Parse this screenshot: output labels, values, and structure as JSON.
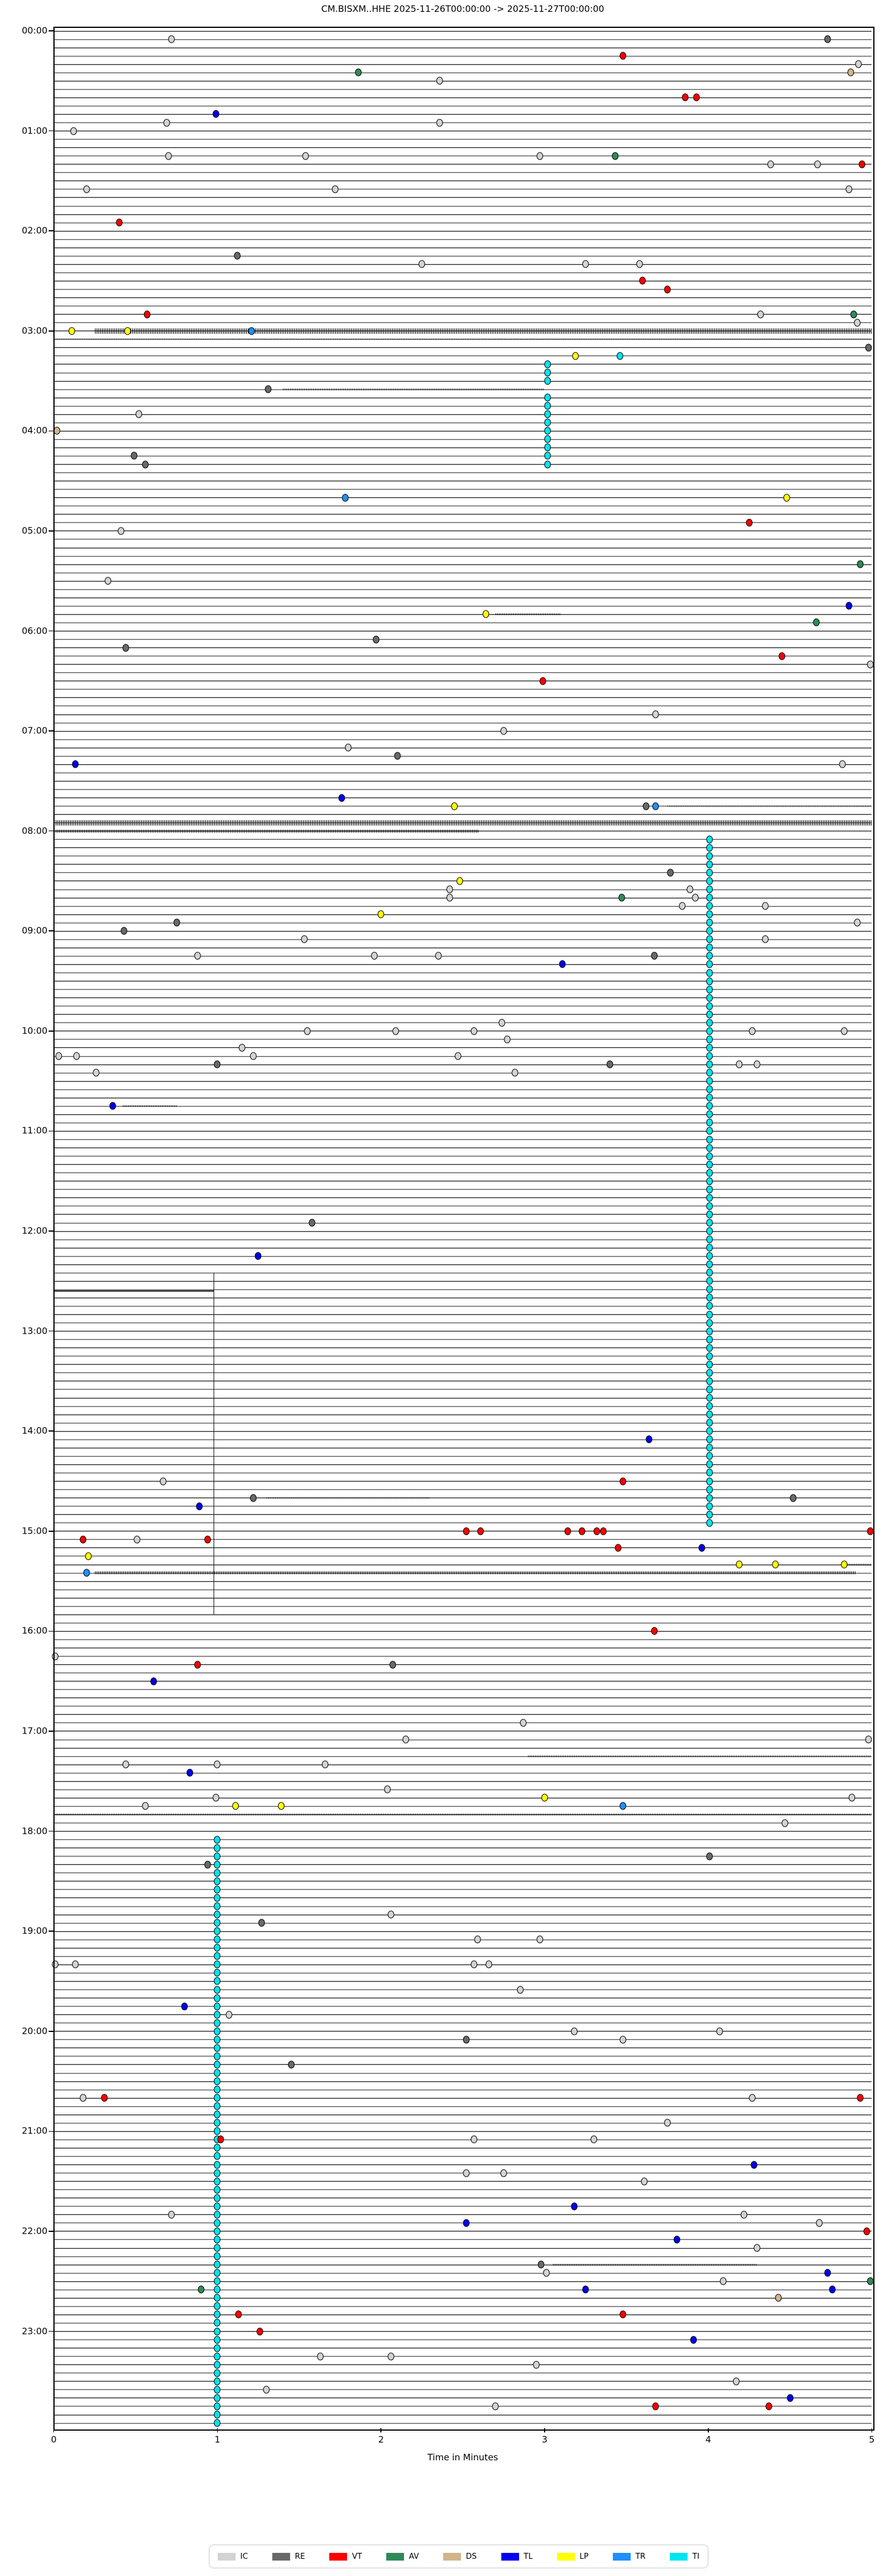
{
  "title": "CM.BISXM..HHE  2025-11-26T00:00:00 -> 2025-11-27T00:00:00",
  "xlabel": "Time in Minutes",
  "x_ticks": [
    "0",
    "1",
    "2",
    "3",
    "4",
    "5"
  ],
  "y_ticks": [
    "00:00",
    "01:00",
    "02:00",
    "03:00",
    "04:00",
    "05:00",
    "06:00",
    "07:00",
    "08:00",
    "09:00",
    "10:00",
    "11:00",
    "12:00",
    "13:00",
    "14:00",
    "15:00",
    "16:00",
    "17:00",
    "18:00",
    "19:00",
    "20:00",
    "21:00",
    "22:00",
    "23:00"
  ],
  "legend": [
    {
      "label": "IC",
      "color": "#d3d3d3"
    },
    {
      "label": "RE",
      "color": "#696969"
    },
    {
      "label": "VT",
      "color": "#ff0000"
    },
    {
      "label": "AV",
      "color": "#2e8b57"
    },
    {
      "label": "DS",
      "color": "#d2b48c"
    },
    {
      "label": "TL",
      "color": "#0000ee"
    },
    {
      "label": "LP",
      "color": "#ffff00"
    },
    {
      "label": "TR",
      "color": "#1e90ff"
    },
    {
      "label": "TI",
      "color": "#00e5f2"
    }
  ],
  "chart_data": {
    "type": "scatter",
    "title": "CM.BISXM..HHE  2025-11-26T00:00:00 -> 2025-11-27T00:00:00",
    "xlabel": "Time in Minutes",
    "x_range": [
      0,
      5
    ],
    "rows": 288,
    "minutes_per_row": 5,
    "time_start": "2025-11-26T00:00:00",
    "time_end": "2025-11-27T00:00:00",
    "grid": "off",
    "legend_position": "bottom-center",
    "marker_classes": [
      "IC",
      "RE",
      "VT",
      "AV",
      "DS",
      "TL",
      "LP",
      "TR",
      "TI"
    ],
    "markers": [
      {
        "t": "00:05",
        "m": 0.72,
        "c": "IC"
      },
      {
        "t": "00:05",
        "m": 4.73,
        "c": "RE"
      },
      {
        "t": "00:15",
        "m": 3.48,
        "c": "VT"
      },
      {
        "t": "00:20",
        "m": 4.92,
        "c": "IC"
      },
      {
        "t": "00:25",
        "m": 1.86,
        "c": "AV"
      },
      {
        "t": "00:25",
        "m": 4.87,
        "c": "DS"
      },
      {
        "t": "00:30",
        "m": 2.36,
        "c": "IC"
      },
      {
        "t": "00:40",
        "m": 3.86,
        "c": "VT"
      },
      {
        "t": "00:40",
        "m": 3.93,
        "c": "VT"
      },
      {
        "t": "00:50",
        "m": 0.99,
        "c": "TL"
      },
      {
        "t": "00:55",
        "m": 0.69,
        "c": "IC"
      },
      {
        "t": "00:55",
        "m": 2.36,
        "c": "IC"
      },
      {
        "t": "01:00",
        "m": 0.12,
        "c": "IC"
      },
      {
        "t": "01:15",
        "m": 0.7,
        "c": "IC"
      },
      {
        "t": "01:15",
        "m": 1.54,
        "c": "IC"
      },
      {
        "t": "01:15",
        "m": 2.97,
        "c": "IC"
      },
      {
        "t": "01:15",
        "m": 3.43,
        "c": "AV"
      },
      {
        "t": "01:20",
        "m": 4.38,
        "c": "IC"
      },
      {
        "t": "01:20",
        "m": 4.67,
        "c": "IC"
      },
      {
        "t": "01:20",
        "m": 4.94,
        "c": "VT"
      },
      {
        "t": "01:35",
        "m": 0.2,
        "c": "IC"
      },
      {
        "t": "01:35",
        "m": 1.72,
        "c": "IC"
      },
      {
        "t": "01:35",
        "m": 4.86,
        "c": "IC"
      },
      {
        "t": "01:55",
        "m": 0.4,
        "c": "VT"
      },
      {
        "t": "02:15",
        "m": 1.12,
        "c": "RE"
      },
      {
        "t": "02:20",
        "m": 2.25,
        "c": "IC"
      },
      {
        "t": "02:20",
        "m": 3.25,
        "c": "IC"
      },
      {
        "t": "02:20",
        "m": 3.58,
        "c": "IC"
      },
      {
        "t": "02:30",
        "m": 3.6,
        "c": "VT"
      },
      {
        "t": "02:35",
        "m": 3.75,
        "c": "VT"
      },
      {
        "t": "02:50",
        "m": 0.57,
        "c": "VT"
      },
      {
        "t": "02:50",
        "m": 4.32,
        "c": "IC"
      },
      {
        "t": "02:50",
        "m": 4.89,
        "c": "AV"
      },
      {
        "t": "02:55",
        "m": 4.91,
        "c": "IC"
      },
      {
        "t": "03:00",
        "m": 0.11,
        "c": "LP"
      },
      {
        "t": "03:00",
        "m": 0.45,
        "c": "LP"
      },
      {
        "t": "03:00",
        "m": 1.21,
        "c": "TR"
      },
      {
        "t": "03:10",
        "m": 4.98,
        "c": "RE"
      },
      {
        "t": "03:15",
        "m": 3.19,
        "c": "LP"
      },
      {
        "t": "03:15",
        "m": 3.46,
        "c": "TI"
      },
      {
        "t": "03:35",
        "m": 1.31,
        "c": "RE"
      },
      {
        "t": "03:50",
        "m": 0.52,
        "c": "IC"
      },
      {
        "t": "04:00",
        "m": 0.02,
        "c": "DS"
      },
      {
        "t": "04:15",
        "m": 0.49,
        "c": "RE"
      },
      {
        "t": "04:20",
        "m": 0.56,
        "c": "RE"
      },
      {
        "t": "04:40",
        "m": 1.78,
        "c": "TR"
      },
      {
        "t": "04:40",
        "m": 4.48,
        "c": "LP"
      },
      {
        "t": "04:55",
        "m": 4.25,
        "c": "VT"
      },
      {
        "t": "05:00",
        "m": 0.41,
        "c": "IC"
      },
      {
        "t": "05:20",
        "m": 4.93,
        "c": "AV"
      },
      {
        "t": "05:30",
        "m": 0.33,
        "c": "IC"
      },
      {
        "t": "05:45",
        "m": 4.86,
        "c": "TL"
      },
      {
        "t": "05:50",
        "m": 2.64,
        "c": "LP"
      },
      {
        "t": "05:55",
        "m": 4.66,
        "c": "AV"
      },
      {
        "t": "06:05",
        "m": 1.97,
        "c": "RE"
      },
      {
        "t": "06:10",
        "m": 0.44,
        "c": "RE"
      },
      {
        "t": "06:15",
        "m": 4.45,
        "c": "VT"
      },
      {
        "t": "06:20",
        "m": 4.99,
        "c": "IC"
      },
      {
        "t": "06:30",
        "m": 2.99,
        "c": "VT"
      },
      {
        "t": "06:50",
        "m": 3.68,
        "c": "IC"
      },
      {
        "t": "07:00",
        "m": 2.75,
        "c": "IC"
      },
      {
        "t": "07:10",
        "m": 1.8,
        "c": "IC"
      },
      {
        "t": "07:15",
        "m": 2.1,
        "c": "RE"
      },
      {
        "t": "07:20",
        "m": 0.13,
        "c": "TL"
      },
      {
        "t": "07:20",
        "m": 4.82,
        "c": "IC"
      },
      {
        "t": "07:40",
        "m": 1.76,
        "c": "TL"
      },
      {
        "t": "07:45",
        "m": 2.45,
        "c": "LP"
      },
      {
        "t": "07:45",
        "m": 3.62,
        "c": "RE"
      },
      {
        "t": "07:45",
        "m": 3.68,
        "c": "TR"
      },
      {
        "t": "08:25",
        "m": 3.77,
        "c": "RE"
      },
      {
        "t": "08:30",
        "m": 2.48,
        "c": "LP"
      },
      {
        "t": "08:35",
        "m": 2.42,
        "c": "IC"
      },
      {
        "t": "08:35",
        "m": 3.89,
        "c": "IC"
      },
      {
        "t": "08:40",
        "m": 2.42,
        "c": "IC"
      },
      {
        "t": "08:40",
        "m": 3.47,
        "c": "AV"
      },
      {
        "t": "08:40",
        "m": 3.92,
        "c": "IC"
      },
      {
        "t": "08:45",
        "m": 3.84,
        "c": "IC"
      },
      {
        "t": "08:45",
        "m": 4.35,
        "c": "IC"
      },
      {
        "t": "08:50",
        "m": 2.0,
        "c": "LP"
      },
      {
        "t": "08:55",
        "m": 0.75,
        "c": "RE"
      },
      {
        "t": "08:55",
        "m": 4.91,
        "c": "IC"
      },
      {
        "t": "09:00",
        "m": 0.43,
        "c": "RE"
      },
      {
        "t": "09:05",
        "m": 1.53,
        "c": "IC"
      },
      {
        "t": "09:05",
        "m": 4.35,
        "c": "IC"
      },
      {
        "t": "09:15",
        "m": 0.88,
        "c": "IC"
      },
      {
        "t": "09:15",
        "m": 1.96,
        "c": "IC"
      },
      {
        "t": "09:15",
        "m": 2.35,
        "c": "IC"
      },
      {
        "t": "09:15",
        "m": 3.67,
        "c": "RE"
      },
      {
        "t": "09:20",
        "m": 3.11,
        "c": "TL"
      },
      {
        "t": "09:55",
        "m": 2.74,
        "c": "IC"
      },
      {
        "t": "10:00",
        "m": 1.55,
        "c": "IC"
      },
      {
        "t": "10:00",
        "m": 2.09,
        "c": "IC"
      },
      {
        "t": "10:00",
        "m": 2.57,
        "c": "IC"
      },
      {
        "t": "10:00",
        "m": 4.27,
        "c": "IC"
      },
      {
        "t": "10:00",
        "m": 4.83,
        "c": "IC"
      },
      {
        "t": "10:05",
        "m": 2.77,
        "c": "IC"
      },
      {
        "t": "10:10",
        "m": 1.15,
        "c": "IC"
      },
      {
        "t": "10:15",
        "m": 0.03,
        "c": "IC"
      },
      {
        "t": "10:15",
        "m": 0.14,
        "c": "IC"
      },
      {
        "t": "10:15",
        "m": 1.22,
        "c": "IC"
      },
      {
        "t": "10:15",
        "m": 2.47,
        "c": "IC"
      },
      {
        "t": "10:20",
        "m": 1.0,
        "c": "RE"
      },
      {
        "t": "10:20",
        "m": 3.4,
        "c": "RE"
      },
      {
        "t": "10:20",
        "m": 4.19,
        "c": "IC"
      },
      {
        "t": "10:20",
        "m": 4.3,
        "c": "IC"
      },
      {
        "t": "10:25",
        "m": 0.26,
        "c": "IC"
      },
      {
        "t": "10:25",
        "m": 2.82,
        "c": "IC"
      },
      {
        "t": "10:45",
        "m": 0.36,
        "c": "TL"
      },
      {
        "t": "11:55",
        "m": 1.58,
        "c": "RE"
      },
      {
        "t": "12:15",
        "m": 1.25,
        "c": "TL"
      },
      {
        "t": "14:05",
        "m": 3.64,
        "c": "TL"
      },
      {
        "t": "14:30",
        "m": 0.67,
        "c": "IC"
      },
      {
        "t": "14:30",
        "m": 3.48,
        "c": "VT"
      },
      {
        "t": "14:40",
        "m": 1.22,
        "c": "RE"
      },
      {
        "t": "14:40",
        "m": 4.52,
        "c": "RE"
      },
      {
        "t": "14:45",
        "m": 0.89,
        "c": "TL"
      },
      {
        "t": "15:00",
        "m": 2.52,
        "c": "VT"
      },
      {
        "t": "15:00",
        "m": 2.61,
        "c": "VT"
      },
      {
        "t": "15:00",
        "m": 3.14,
        "c": "VT"
      },
      {
        "t": "15:00",
        "m": 3.23,
        "c": "VT"
      },
      {
        "t": "15:00",
        "m": 3.32,
        "c": "VT"
      },
      {
        "t": "15:00",
        "m": 3.36,
        "c": "VT"
      },
      {
        "t": "15:00",
        "m": 4.99,
        "c": "VT"
      },
      {
        "t": "15:05",
        "m": 0.18,
        "c": "VT"
      },
      {
        "t": "15:05",
        "m": 0.51,
        "c": "IC"
      },
      {
        "t": "15:05",
        "m": 0.94,
        "c": "VT"
      },
      {
        "t": "15:10",
        "m": 3.45,
        "c": "VT"
      },
      {
        "t": "15:10",
        "m": 3.96,
        "c": "TL"
      },
      {
        "t": "15:15",
        "m": 0.21,
        "c": "LP"
      },
      {
        "t": "15:20",
        "m": 4.19,
        "c": "LP"
      },
      {
        "t": "15:20",
        "m": 4.41,
        "c": "LP"
      },
      {
        "t": "15:20",
        "m": 4.83,
        "c": "LP"
      },
      {
        "t": "15:25",
        "m": 0.2,
        "c": "TR"
      },
      {
        "t": "16:00",
        "m": 3.67,
        "c": "VT"
      },
      {
        "t": "16:15",
        "m": 0.01,
        "c": "IC"
      },
      {
        "t": "16:20",
        "m": 0.88,
        "c": "VT"
      },
      {
        "t": "16:20",
        "m": 2.07,
        "c": "RE"
      },
      {
        "t": "16:30",
        "m": 0.61,
        "c": "TL"
      },
      {
        "t": "16:55",
        "m": 2.87,
        "c": "IC"
      },
      {
        "t": "17:05",
        "m": 2.15,
        "c": "IC"
      },
      {
        "t": "17:05",
        "m": 4.98,
        "c": "IC"
      },
      {
        "t": "17:20",
        "m": 0.44,
        "c": "IC"
      },
      {
        "t": "17:20",
        "m": 1.0,
        "c": "IC"
      },
      {
        "t": "17:20",
        "m": 1.66,
        "c": "IC"
      },
      {
        "t": "17:25",
        "m": 0.83,
        "c": "TL"
      },
      {
        "t": "17:35",
        "m": 2.04,
        "c": "IC"
      },
      {
        "t": "17:40",
        "m": 0.99,
        "c": "IC"
      },
      {
        "t": "17:40",
        "m": 3.0,
        "c": "LP"
      },
      {
        "t": "17:40",
        "m": 4.88,
        "c": "IC"
      },
      {
        "t": "17:45",
        "m": 0.56,
        "c": "IC"
      },
      {
        "t": "17:45",
        "m": 1.11,
        "c": "LP"
      },
      {
        "t": "17:45",
        "m": 1.39,
        "c": "LP"
      },
      {
        "t": "17:45",
        "m": 3.48,
        "c": "TR"
      },
      {
        "t": "17:55",
        "m": 4.47,
        "c": "IC"
      },
      {
        "t": "18:15",
        "m": 4.01,
        "c": "RE"
      },
      {
        "t": "18:20",
        "m": 0.94,
        "c": "RE"
      },
      {
        "t": "18:50",
        "m": 2.06,
        "c": "IC"
      },
      {
        "t": "18:55",
        "m": 1.27,
        "c": "RE"
      },
      {
        "t": "19:05",
        "m": 2.59,
        "c": "IC"
      },
      {
        "t": "19:05",
        "m": 2.97,
        "c": "IC"
      },
      {
        "t": "19:20",
        "m": 0.01,
        "c": "IC"
      },
      {
        "t": "19:20",
        "m": 0.13,
        "c": "IC"
      },
      {
        "t": "19:20",
        "m": 2.57,
        "c": "IC"
      },
      {
        "t": "19:20",
        "m": 2.66,
        "c": "IC"
      },
      {
        "t": "19:35",
        "m": 2.85,
        "c": "IC"
      },
      {
        "t": "19:45",
        "m": 0.8,
        "c": "TL"
      },
      {
        "t": "19:50",
        "m": 1.07,
        "c": "IC"
      },
      {
        "t": "20:00",
        "m": 3.18,
        "c": "IC"
      },
      {
        "t": "20:00",
        "m": 4.07,
        "c": "IC"
      },
      {
        "t": "20:05",
        "m": 2.52,
        "c": "RE"
      },
      {
        "t": "20:05",
        "m": 3.48,
        "c": "IC"
      },
      {
        "t": "20:20",
        "m": 1.45,
        "c": "RE"
      },
      {
        "t": "20:40",
        "m": 0.18,
        "c": "IC"
      },
      {
        "t": "20:40",
        "m": 0.31,
        "c": "VT"
      },
      {
        "t": "20:40",
        "m": 4.27,
        "c": "IC"
      },
      {
        "t": "20:40",
        "m": 4.93,
        "c": "VT"
      },
      {
        "t": "20:55",
        "m": 3.75,
        "c": "IC"
      },
      {
        "t": "21:05",
        "m": 1.02,
        "c": "VT"
      },
      {
        "t": "21:05",
        "m": 2.57,
        "c": "IC"
      },
      {
        "t": "21:05",
        "m": 3.3,
        "c": "IC"
      },
      {
        "t": "21:20",
        "m": 4.28,
        "c": "TL"
      },
      {
        "t": "21:25",
        "m": 2.52,
        "c": "IC"
      },
      {
        "t": "21:25",
        "m": 2.75,
        "c": "IC"
      },
      {
        "t": "21:30",
        "m": 3.61,
        "c": "IC"
      },
      {
        "t": "21:45",
        "m": 3.18,
        "c": "TL"
      },
      {
        "t": "21:50",
        "m": 0.72,
        "c": "IC"
      },
      {
        "t": "21:50",
        "m": 4.22,
        "c": "IC"
      },
      {
        "t": "21:55",
        "m": 2.52,
        "c": "TL"
      },
      {
        "t": "21:55",
        "m": 4.68,
        "c": "IC"
      },
      {
        "t": "22:00",
        "m": 4.97,
        "c": "VT"
      },
      {
        "t": "22:05",
        "m": 3.81,
        "c": "TL"
      },
      {
        "t": "22:10",
        "m": 4.3,
        "c": "IC"
      },
      {
        "t": "22:20",
        "m": 2.98,
        "c": "RE"
      },
      {
        "t": "22:25",
        "m": 3.01,
        "c": "IC"
      },
      {
        "t": "22:25",
        "m": 4.73,
        "c": "TL"
      },
      {
        "t": "22:30",
        "m": 4.09,
        "c": "IC"
      },
      {
        "t": "22:30",
        "m": 4.99,
        "c": "AV"
      },
      {
        "t": "22:35",
        "m": 0.9,
        "c": "AV"
      },
      {
        "t": "22:35",
        "m": 3.25,
        "c": "TL"
      },
      {
        "t": "22:35",
        "m": 4.76,
        "c": "TL"
      },
      {
        "t": "22:40",
        "m": 4.43,
        "c": "DS"
      },
      {
        "t": "22:50",
        "m": 1.13,
        "c": "VT"
      },
      {
        "t": "22:50",
        "m": 3.48,
        "c": "VT"
      },
      {
        "t": "23:00",
        "m": 1.26,
        "c": "VT"
      },
      {
        "t": "23:05",
        "m": 3.91,
        "c": "TL"
      },
      {
        "t": "23:15",
        "m": 1.63,
        "c": "IC"
      },
      {
        "t": "23:15",
        "m": 2.06,
        "c": "IC"
      },
      {
        "t": "23:20",
        "m": 2.95,
        "c": "IC"
      },
      {
        "t": "23:30",
        "m": 4.17,
        "c": "IC"
      },
      {
        "t": "23:35",
        "m": 1.3,
        "c": "IC"
      },
      {
        "t": "23:40",
        "m": 4.5,
        "c": "TL"
      },
      {
        "t": "23:45",
        "m": 2.7,
        "c": "IC"
      },
      {
        "t": "23:45",
        "m": 3.68,
        "c": "VT"
      },
      {
        "t": "23:45",
        "m": 4.37,
        "c": "VT"
      }
    ],
    "marker_chains": [
      {
        "c": "TI",
        "m": 3.02,
        "from": "03:20",
        "to": "03:30"
      },
      {
        "c": "TI",
        "m": 3.02,
        "from": "03:40",
        "to": "04:20"
      },
      {
        "c": "TI",
        "m": 4.01,
        "from": "08:05",
        "to": "14:55"
      },
      {
        "c": "TI",
        "m": 1.0,
        "from": "18:05",
        "to": "23:55"
      }
    ],
    "noise_segments": [
      {
        "t": "03:00",
        "from": 0.25,
        "to": 5.0,
        "level": "heavy"
      },
      {
        "t": "03:05",
        "from": 0.0,
        "to": 5.0,
        "level": "light"
      },
      {
        "t": "03:35",
        "from": 1.4,
        "to": 3.0,
        "level": "light"
      },
      {
        "t": "05:50",
        "from": 2.7,
        "to": 3.1,
        "level": "light"
      },
      {
        "t": "07:45",
        "from": 3.75,
        "to": 5.0,
        "level": "light"
      },
      {
        "t": "07:55",
        "from": 0.0,
        "to": 5.0,
        "level": "heavy"
      },
      {
        "t": "08:00",
        "from": 0.0,
        "to": 2.6,
        "level": "medium"
      },
      {
        "t": "10:45",
        "from": 0.42,
        "to": 0.75,
        "level": "light"
      },
      {
        "t": "14:40",
        "from": 1.3,
        "to": 2.3,
        "level": "light"
      },
      {
        "t": "15:20",
        "from": 4.85,
        "to": 5.0,
        "level": "light"
      },
      {
        "t": "15:25",
        "from": 0.25,
        "to": 4.9,
        "level": "medium"
      },
      {
        "t": "17:15",
        "from": 2.9,
        "to": 5.0,
        "level": "light"
      },
      {
        "t": "17:50",
        "from": 0.0,
        "to": 5.0,
        "level": "light"
      },
      {
        "t": "22:20",
        "from": 3.05,
        "to": 4.3,
        "level": "light"
      }
    ],
    "artifact": {
      "vline_minute": 0.976,
      "vline_from": "12:25",
      "vline_to": "15:50",
      "offset_row": "12:35",
      "offset_from": 0.0,
      "offset_to": 0.976
    }
  }
}
